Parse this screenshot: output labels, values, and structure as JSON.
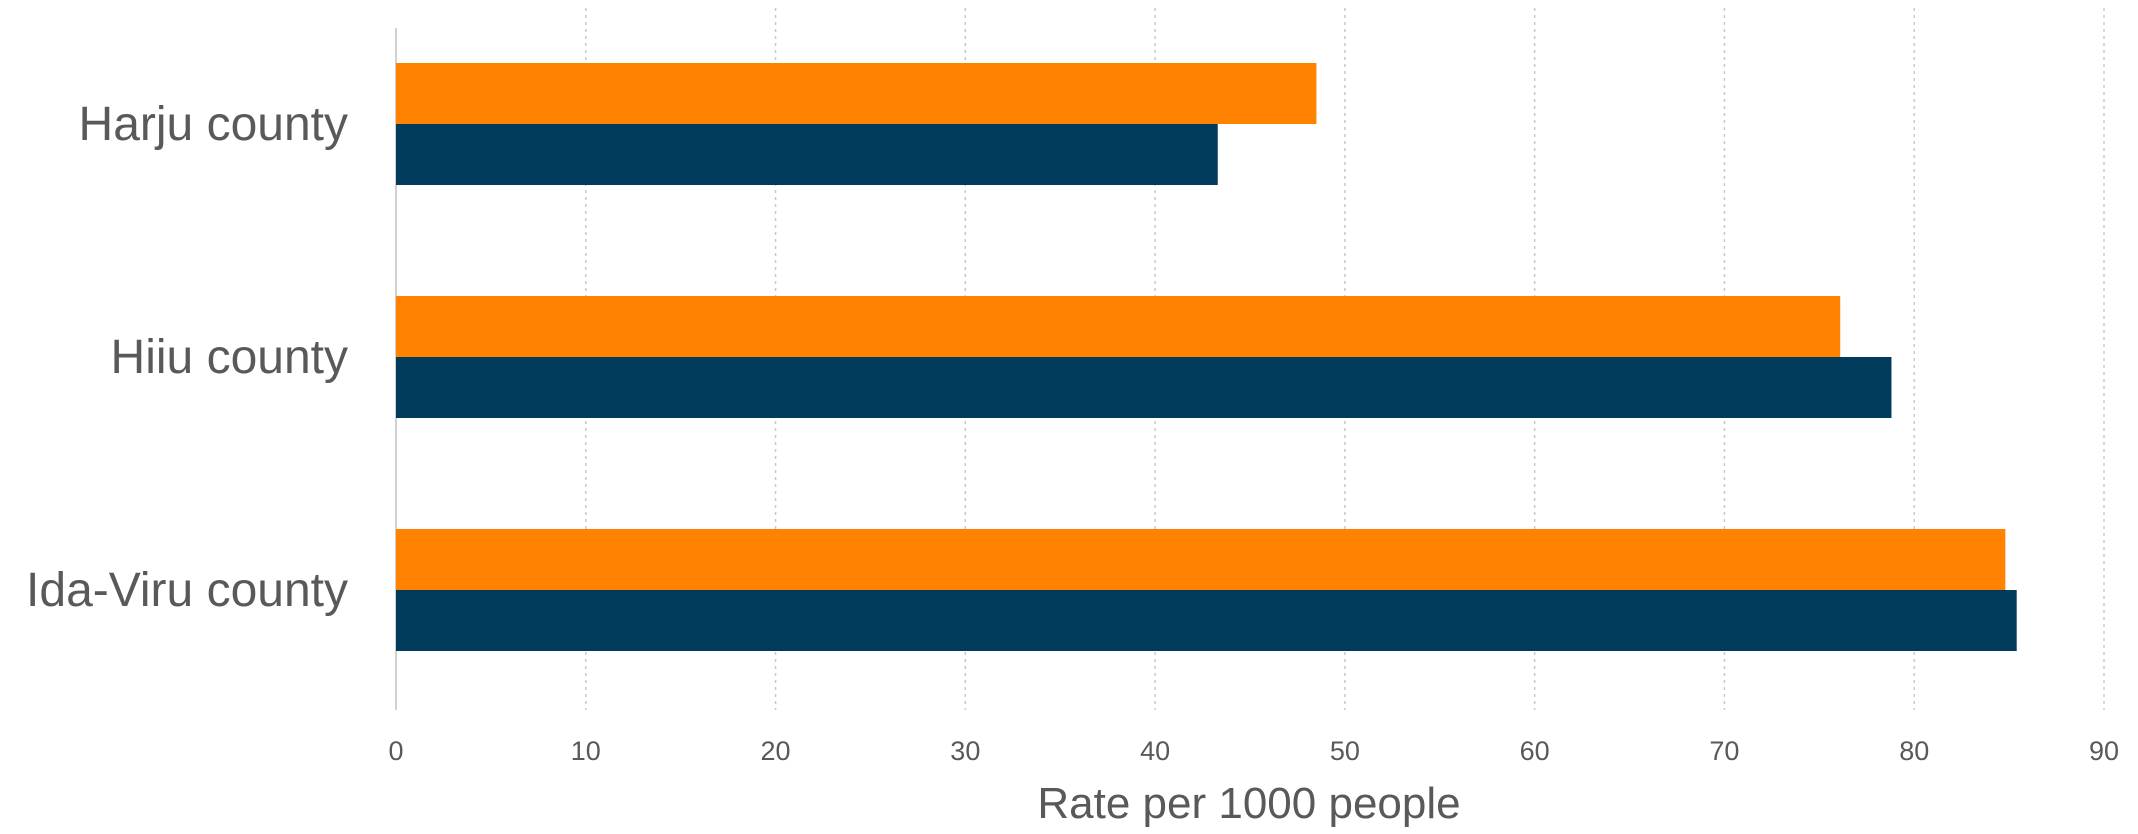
{
  "chart_data": {
    "type": "bar",
    "orientation": "horizontal",
    "categories": [
      "Harju county",
      "Hiiu county",
      "Ida-Viru county"
    ],
    "series": [
      {
        "values": [
          48.5,
          76.1,
          84.8
        ],
        "color": "#FF8200"
      },
      {
        "values": [
          43.3,
          78.8,
          85.4
        ],
        "color": "#003B5C"
      }
    ],
    "xticks": [
      0,
      10,
      20,
      30,
      40,
      50,
      60,
      70,
      80,
      90
    ],
    "xlim": [
      0,
      90
    ],
    "xlabel": "Rate per 1000 people",
    "grid": "vertical-dotted"
  }
}
